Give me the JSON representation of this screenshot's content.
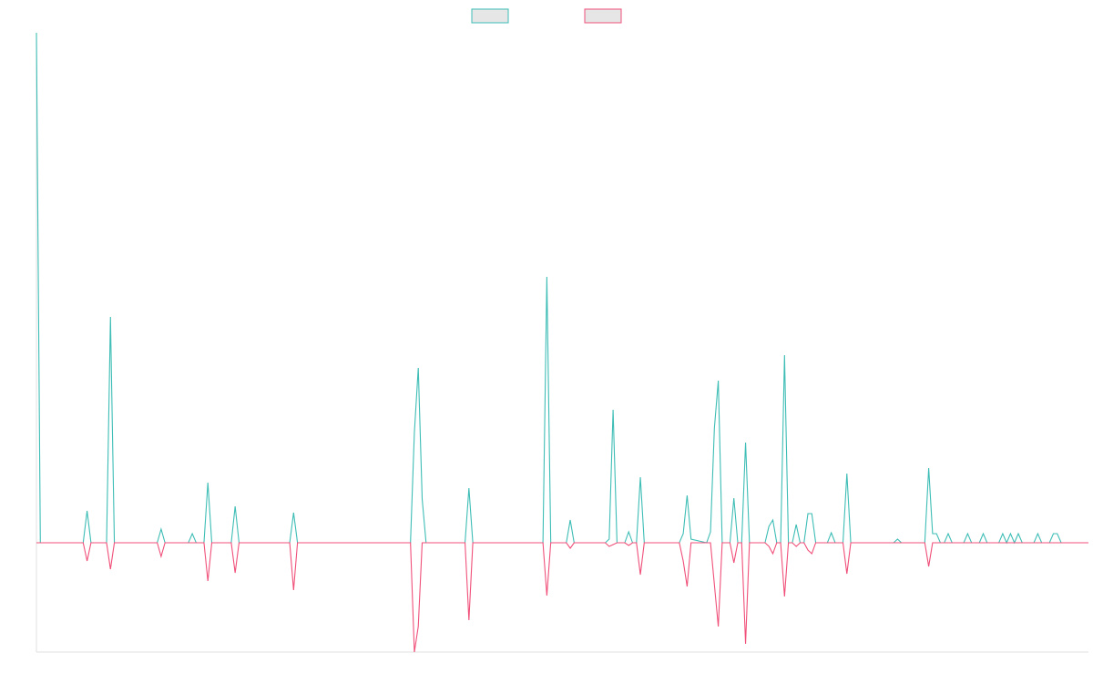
{
  "chart_data": {
    "type": "line",
    "x": [
      0,
      1,
      12,
      13,
      14,
      18,
      19,
      20,
      31,
      32,
      33,
      39,
      40,
      41,
      43,
      44,
      45,
      50,
      51,
      52,
      65,
      66,
      67,
      96,
      97,
      98,
      99,
      100,
      110,
      111,
      112,
      130,
      131,
      132,
      136,
      137,
      138,
      146,
      147,
      148,
      149,
      151,
      152,
      153,
      154,
      155,
      156,
      165,
      166,
      167,
      168,
      172,
      173,
      174,
      175,
      176,
      178,
      179,
      180,
      181,
      182,
      183,
      187,
      188,
      189,
      190,
      191,
      192,
      193,
      194,
      195,
      196,
      197,
      198,
      199,
      200,
      203,
      204,
      205,
      207,
      208,
      209,
      220,
      221,
      222,
      228,
      229,
      230,
      231,
      232,
      233,
      234,
      235,
      238,
      239,
      240,
      242,
      243,
      244,
      247,
      248,
      249,
      250,
      251,
      252,
      253,
      256,
      257,
      258,
      260,
      261,
      262,
      263,
      270
    ],
    "series": [
      {
        "color": "#3dbdb5",
        "values": [
          560,
          0,
          0,
          35,
          0,
          0,
          248,
          0,
          0,
          15,
          0,
          0,
          10,
          0,
          0,
          66,
          0,
          0,
          40,
          0,
          0,
          33,
          0,
          0,
          121,
          192,
          48,
          0,
          0,
          60,
          0,
          0,
          292,
          0,
          0,
          25,
          0,
          0,
          4,
          146,
          0,
          0,
          12,
          0,
          0,
          72,
          0,
          0,
          10,
          52,
          4,
          0,
          12,
          126,
          178,
          0,
          0,
          49,
          0,
          0,
          110,
          0,
          0,
          18,
          25,
          0,
          0,
          206,
          0,
          0,
          20,
          0,
          0,
          32,
          32,
          0,
          0,
          11,
          0,
          0,
          76,
          0,
          0,
          4,
          0,
          0,
          82,
          10,
          10,
          0,
          0,
          10,
          0,
          0,
          10,
          0,
          0,
          10,
          0,
          0,
          10,
          0,
          10,
          0,
          10,
          0,
          0,
          10,
          0,
          0,
          10,
          10,
          0,
          0
        ]
      },
      {
        "color": "#f0507a",
        "values": [
          0,
          0,
          0,
          -20,
          0,
          0,
          -29,
          0,
          0,
          -15,
          0,
          0,
          0,
          0,
          0,
          -42,
          0,
          0,
          -33,
          0,
          0,
          -52,
          0,
          0,
          -120,
          -92,
          0,
          0,
          0,
          -85,
          0,
          0,
          -58,
          0,
          0,
          -6,
          0,
          0,
          -4,
          -2,
          0,
          0,
          -3,
          0,
          0,
          -35,
          0,
          0,
          -20,
          -48,
          0,
          0,
          0,
          -46,
          -92,
          0,
          0,
          -22,
          0,
          0,
          -111,
          0,
          0,
          -4,
          -12,
          0,
          0,
          -59,
          0,
          0,
          -4,
          0,
          0,
          -8,
          -12,
          0,
          0,
          0,
          0,
          0,
          -34,
          0,
          0,
          0,
          0,
          0,
          -26,
          0,
          0,
          0,
          0,
          0,
          0,
          0,
          0,
          0,
          0,
          0,
          0,
          0,
          0,
          0,
          0,
          0,
          0,
          0,
          0,
          0,
          0,
          0,
          0,
          0,
          0,
          0
        ]
      }
    ],
    "xlim": [
      0,
      270
    ],
    "ylim": [
      -120,
      560
    ],
    "legend": "top",
    "grid": false
  }
}
